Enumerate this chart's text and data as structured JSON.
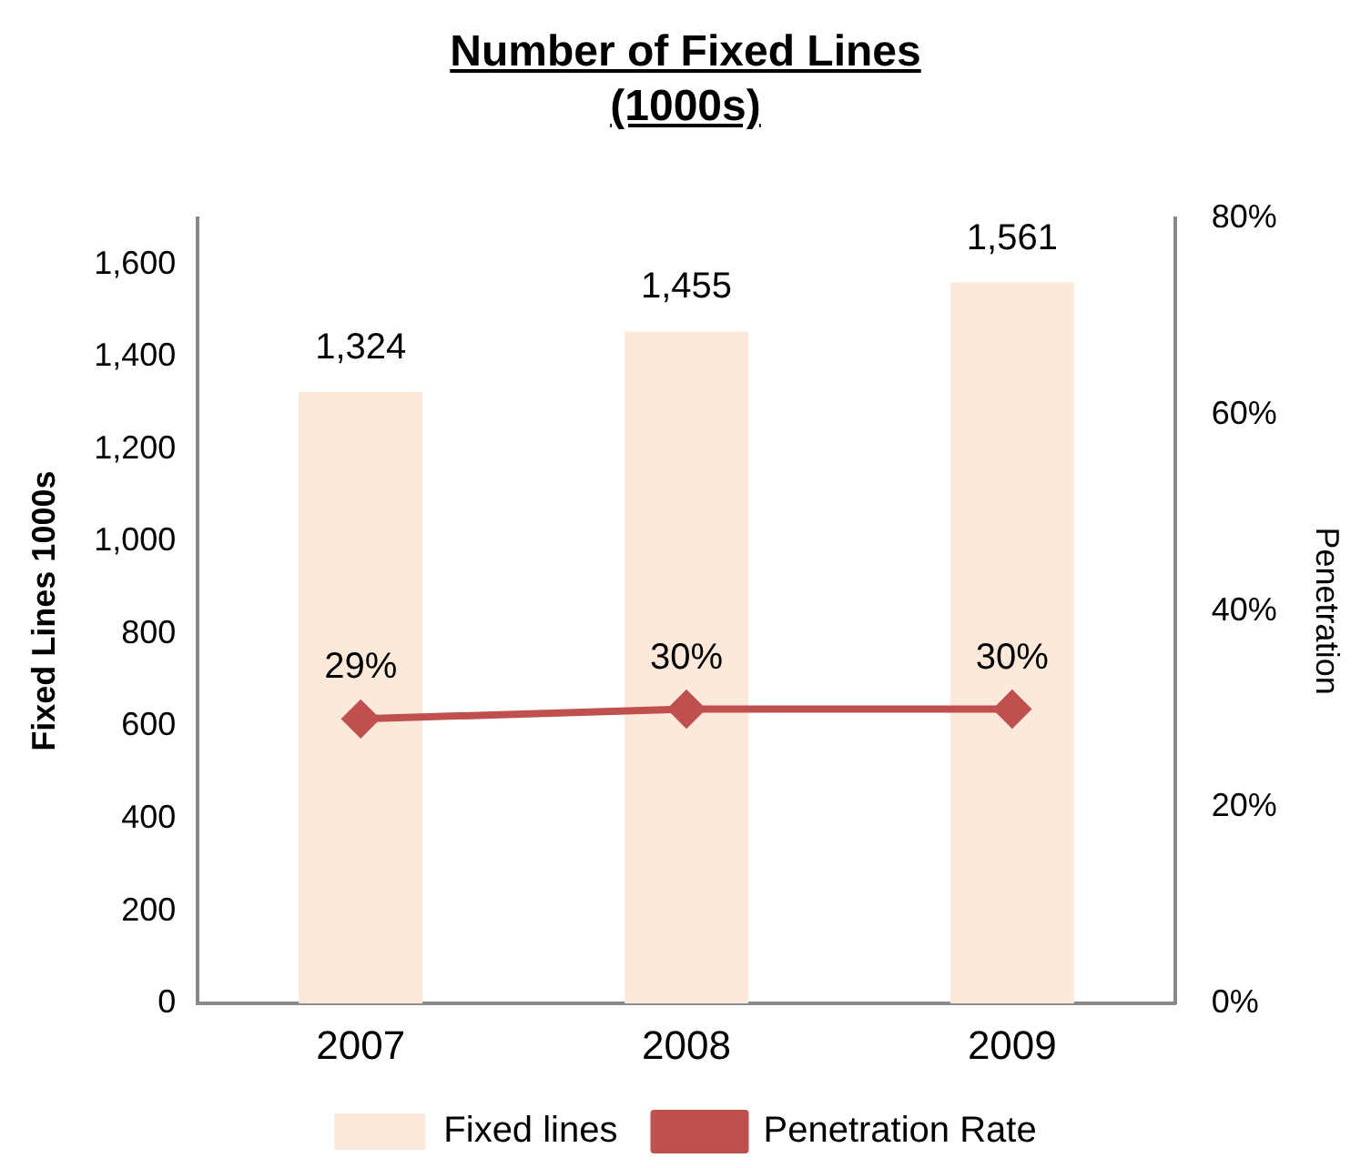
{
  "chart_data": {
    "type": "bar",
    "title": "Number of Fixed Lines\n(1000s)",
    "ylabel": "Fixed Lines 1000s",
    "y2label": "Penetration",
    "categories": [
      "2007",
      "2008",
      "2009"
    ],
    "series": [
      {
        "name": "Fixed lines",
        "color": "#fde9d9",
        "values": [
          1324,
          1455,
          1561
        ],
        "value_labels": [
          "1,324",
          "1,455",
          "1,561"
        ]
      },
      {
        "name": "Penetration Rate",
        "type": "line",
        "axis": "y2",
        "color": "#c0504d",
        "marker": "diamond",
        "values": [
          29,
          30,
          30
        ],
        "value_labels": [
          "29%",
          "30%",
          "30%"
        ]
      }
    ],
    "ylim": [
      0,
      1700
    ],
    "yticks": [
      0,
      200,
      400,
      600,
      800,
      {
        "value": 1000,
        "label": "1,000"
      },
      {
        "value": 1200,
        "label": "1,200"
      },
      {
        "value": 1400,
        "label": "1,400"
      },
      {
        "value": 1600,
        "label": "1,600"
      }
    ],
    "y2lim": [
      0,
      80
    ],
    "y2ticks": [
      {
        "value": 0,
        "label": "0%"
      },
      {
        "value": 20,
        "label": "20%"
      },
      {
        "value": 40,
        "label": "40%"
      },
      {
        "value": 60,
        "label": "60%"
      },
      {
        "value": 80,
        "label": "80%"
      }
    ],
    "grid": false,
    "legend": "bottom"
  }
}
